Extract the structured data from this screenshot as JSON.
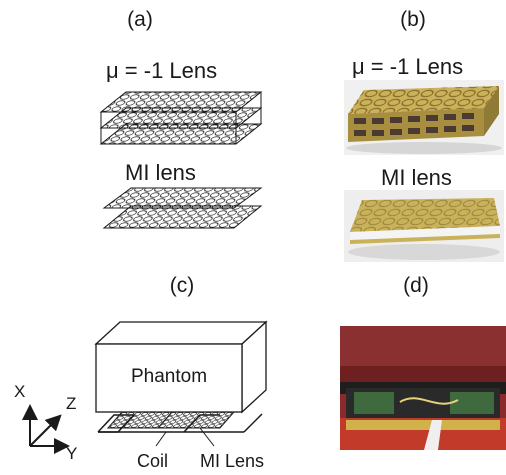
{
  "panels": {
    "a": {
      "label": "(a)",
      "lens_top_caption": "μ = -1 Lens",
      "lens_bottom_caption": "MI lens"
    },
    "b": {
      "label": "(b)",
      "lens_top_caption": "μ = -1 Lens",
      "lens_bottom_caption": "MI lens"
    },
    "c": {
      "label": "(c)",
      "phantom_label": "Phantom",
      "axis_x": "X",
      "axis_y": "Y",
      "axis_z": "Z",
      "coil_label": "Coil",
      "lens_label": "MI Lens"
    },
    "d": {
      "label": "(d)"
    }
  },
  "colors": {
    "line": "#1a1a1a",
    "board_yellow": "#c9b25a",
    "copper_ring": "#8a6a2c",
    "board_red": "#8b2a2a",
    "photo_bg": "#eeeeee"
  }
}
